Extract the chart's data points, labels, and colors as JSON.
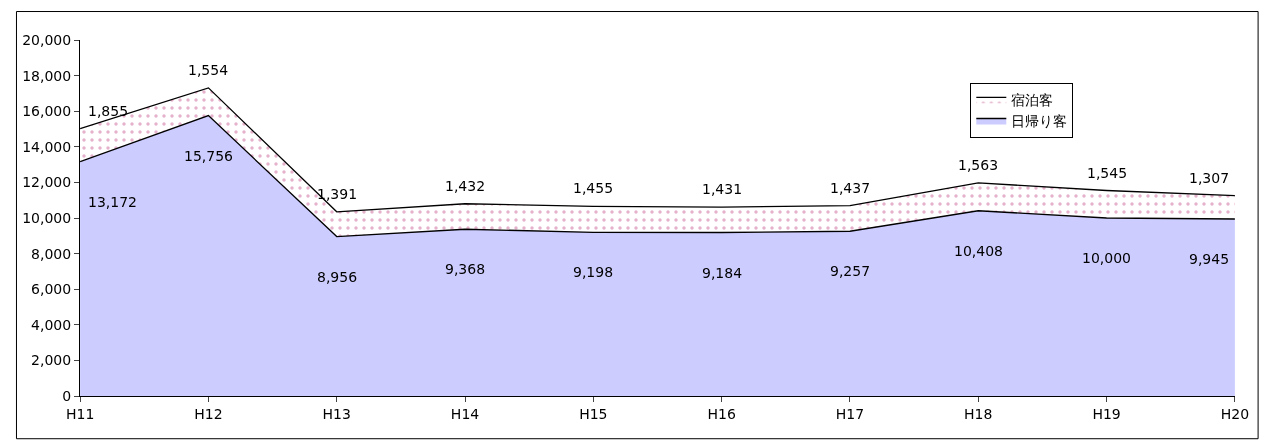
{
  "chart_data": {
    "type": "area",
    "stacked": true,
    "categories": [
      "H11",
      "H12",
      "H13",
      "H14",
      "H15",
      "H16",
      "H17",
      "H18",
      "H19",
      "H20"
    ],
    "series": [
      {
        "name": "日帰り客",
        "color": "#ccccff",
        "values": [
          13172,
          15756,
          8956,
          9368,
          9198,
          9184,
          9257,
          10408,
          10000,
          9945
        ],
        "value_labels": [
          "13,172",
          "15,756",
          "8,956",
          "9,368",
          "9,198",
          "9,184",
          "9,257",
          "10,408",
          "10,000",
          "9,945"
        ]
      },
      {
        "name": "宿泊客",
        "color": "#ffffff",
        "values": [
          1855,
          1554,
          1391,
          1432,
          1455,
          1431,
          1437,
          1563,
          1545,
          1307
        ],
        "value_labels": [
          "1,855",
          "1,554",
          "1,391",
          "1,432",
          "1,455",
          "1,431",
          "1,437",
          "1,563",
          "1,545",
          "1,307"
        ]
      }
    ],
    "ylim": [
      0,
      20000
    ],
    "yticks": [
      {
        "value": 0,
        "label": "0"
      },
      {
        "value": 2000,
        "label": "2,000"
      },
      {
        "value": 4000,
        "label": "4,000"
      },
      {
        "value": 6000,
        "label": "6,000"
      },
      {
        "value": 8000,
        "label": "8,000"
      },
      {
        "value": 10000,
        "label": "10,000"
      },
      {
        "value": 12000,
        "label": "12,000"
      },
      {
        "value": 14000,
        "label": "14,000"
      },
      {
        "value": 16000,
        "label": "16,000"
      },
      {
        "value": 18000,
        "label": "18,000"
      },
      {
        "value": 20000,
        "label": "20,000"
      }
    ],
    "legend": "top right"
  }
}
